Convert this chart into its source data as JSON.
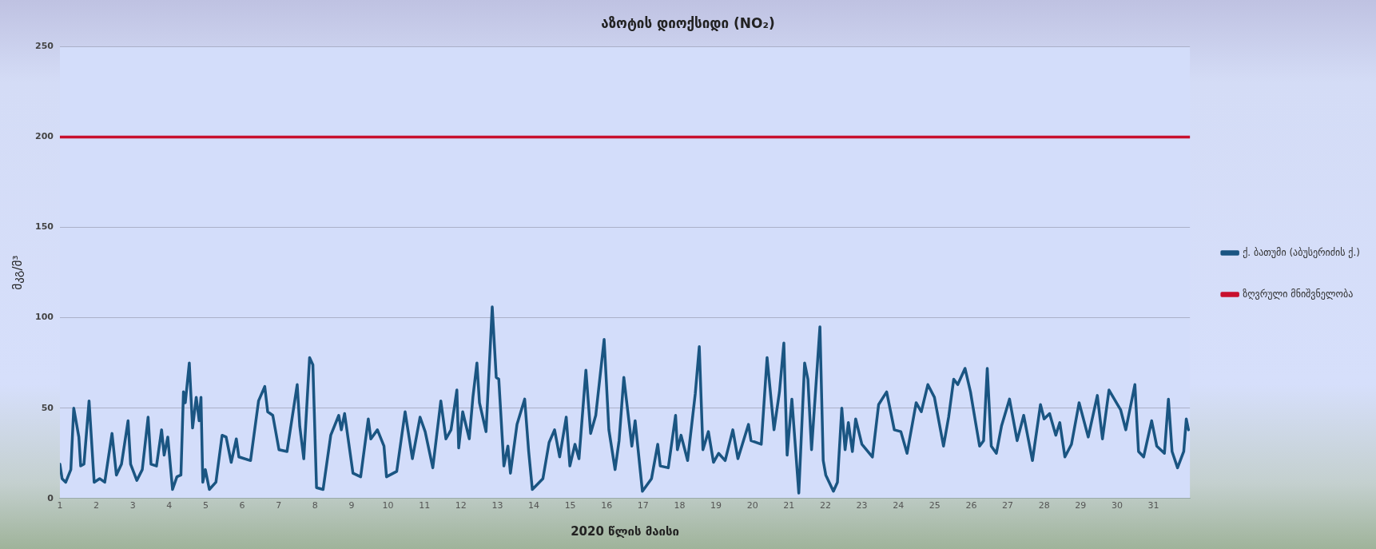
{
  "chart_data": {
    "type": "line",
    "title": "აზოტის დიოქსიდი (NO₂)",
    "xlabel": "2020 წლის მაისი",
    "ylabel": "მკგ/მ³",
    "xlim": [
      1,
      32
    ],
    "xticks": [
      1,
      2,
      3,
      4,
      5,
      6,
      7,
      8,
      9,
      10,
      11,
      12,
      13,
      14,
      15,
      16,
      17,
      18,
      19,
      20,
      21,
      22,
      23,
      24,
      25,
      26,
      27,
      28,
      29,
      30,
      31
    ],
    "ylim": [
      0,
      250
    ],
    "yticks": [
      0,
      50,
      100,
      150,
      200,
      250
    ],
    "grid": "y",
    "legend": "right",
    "series": [
      {
        "name": "ქ. ბათუმი (აბუსერიძის ქ.)",
        "color": "#1a5582",
        "x": [
          1.0,
          1.06,
          1.16,
          1.3,
          1.38,
          1.52,
          1.57,
          1.66,
          1.8,
          1.94,
          2.09,
          2.23,
          2.43,
          2.55,
          2.69,
          2.87,
          2.94,
          3.11,
          3.26,
          3.42,
          3.5,
          3.65,
          3.79,
          3.86,
          3.96,
          4.09,
          4.21,
          4.32,
          4.39,
          4.44,
          4.55,
          4.64,
          4.74,
          4.82,
          4.87,
          4.92,
          4.99,
          5.1,
          5.28,
          5.45,
          5.56,
          5.7,
          5.84,
          5.91,
          6.23,
          6.45,
          6.62,
          6.7,
          6.84,
          7.01,
          7.23,
          7.51,
          7.58,
          7.69,
          7.85,
          7.94,
          8.04,
          8.22,
          8.43,
          8.65,
          8.72,
          8.81,
          9.04,
          9.25,
          9.46,
          9.53,
          9.71,
          9.89,
          9.96,
          10.24,
          10.47,
          10.67,
          10.88,
          11.02,
          11.23,
          11.45,
          11.59,
          11.73,
          11.89,
          11.94,
          12.05,
          12.23,
          12.33,
          12.44,
          12.51,
          12.69,
          12.86,
          12.97,
          13.04,
          13.18,
          13.29,
          13.36,
          13.54,
          13.75,
          13.86,
          13.96,
          14.25,
          14.42,
          14.57,
          14.71,
          14.89,
          14.99,
          15.13,
          15.24,
          15.43,
          15.56,
          15.7,
          15.93,
          16.06,
          16.23,
          16.34,
          16.47,
          16.69,
          16.78,
          16.98,
          17.23,
          17.4,
          17.47,
          17.69,
          17.89,
          17.94,
          18.04,
          18.22,
          18.43,
          18.54,
          18.64,
          18.79,
          18.93,
          19.07,
          19.25,
          19.46,
          19.6,
          19.89,
          19.96,
          20.24,
          20.4,
          20.59,
          20.74,
          20.86,
          20.95,
          21.08,
          21.27,
          21.43,
          21.52,
          21.62,
          21.85,
          21.94,
          22.01,
          22.22,
          22.33,
          22.45,
          22.54,
          22.63,
          22.74,
          22.83,
          23.0,
          23.29,
          23.46,
          23.68,
          23.89,
          24.07,
          24.24,
          24.49,
          24.63,
          24.81,
          24.99,
          25.24,
          25.38,
          25.52,
          25.63,
          25.83,
          25.98,
          26.12,
          26.23,
          26.34,
          26.44,
          26.55,
          26.69,
          26.83,
          27.05,
          27.26,
          27.44,
          27.68,
          27.9,
          28.0,
          28.15,
          28.32,
          28.43,
          28.57,
          28.75,
          28.96,
          29.21,
          29.46,
          29.6,
          29.78,
          30.1,
          30.24,
          30.49,
          30.59,
          30.73,
          30.95,
          31.09,
          31.3,
          31.41,
          31.51,
          31.66,
          31.83,
          31.9,
          31.96
        ],
        "values": [
          19,
          11,
          9,
          16,
          50,
          34,
          18,
          19,
          54,
          9,
          11,
          9,
          36,
          13,
          19,
          43,
          19,
          10,
          16,
          45,
          19,
          18,
          38,
          24,
          34,
          5,
          12,
          13,
          59,
          53,
          75,
          39,
          56,
          43,
          56,
          9,
          16,
          5,
          9,
          35,
          34,
          20,
          33,
          23,
          21,
          54,
          62,
          48,
          46,
          27,
          26,
          63,
          40,
          22,
          78,
          74,
          6,
          5,
          35,
          46,
          38,
          47,
          14,
          12,
          44,
          33,
          38,
          29,
          12,
          15,
          48,
          22,
          45,
          37,
          17,
          54,
          33,
          38,
          60,
          28,
          48,
          33,
          56,
          75,
          53,
          37,
          106,
          67,
          66,
          18,
          29,
          14,
          41,
          55,
          26,
          5,
          11,
          31,
          38,
          23,
          45,
          18,
          30,
          22,
          71,
          36,
          46,
          88,
          38,
          16,
          32,
          67,
          29,
          43,
          4,
          11,
          30,
          18,
          17,
          46,
          27,
          35,
          21,
          58,
          84,
          27,
          37,
          20,
          25,
          21,
          38,
          22,
          41,
          32,
          30,
          78,
          38,
          59,
          86,
          24,
          55,
          3,
          75,
          66,
          27,
          95,
          21,
          13,
          4,
          9,
          50,
          27,
          42,
          26,
          44,
          30,
          23,
          52,
          59,
          38,
          37,
          25,
          53,
          48,
          63,
          56,
          29,
          45,
          66,
          63,
          72,
          59,
          42,
          29,
          32,
          72,
          29,
          25,
          40,
          55,
          32,
          46,
          21,
          52,
          44,
          47,
          35,
          42,
          23,
          30,
          53,
          34,
          57,
          33,
          60,
          49,
          38,
          63,
          26,
          23,
          43,
          29,
          25,
          55,
          26,
          17,
          26,
          44,
          38
        ]
      },
      {
        "name": "ზღვრული მნიშვნელობა",
        "color": "#c8102e",
        "x": [
          1,
          32
        ],
        "values": [
          200,
          200
        ]
      }
    ]
  }
}
